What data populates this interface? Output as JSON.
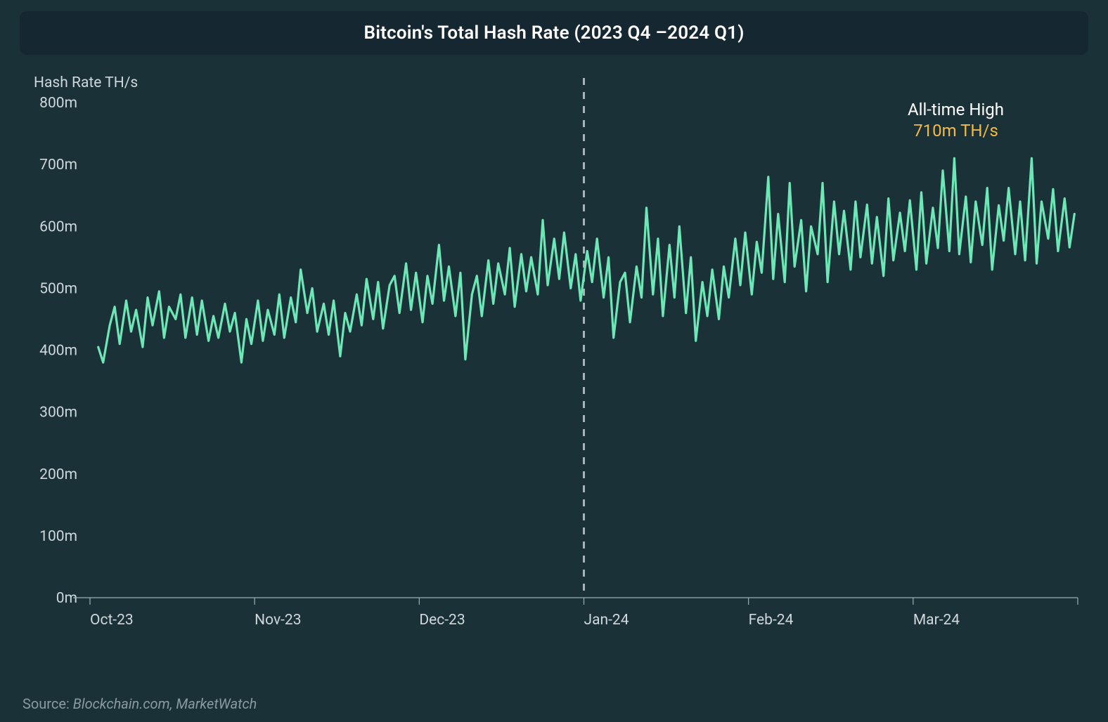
{
  "title": "Bitcoin's Total Hash Rate (2023 Q4 –2024 Q1)",
  "chart": {
    "type": "line",
    "ylabel": "Hash Rate TH/s",
    "ylim": [
      0,
      800
    ],
    "ytick_step": 100,
    "ytick_labels": [
      "0m",
      "100m",
      "200m",
      "300m",
      "400m",
      "500m",
      "600m",
      "700m",
      "800m"
    ],
    "xlim": [
      0,
      6
    ],
    "xticks": [
      0,
      1,
      2,
      3,
      4,
      5
    ],
    "xtick_labels": [
      "Oct-23",
      "Nov-23",
      "Dec-23",
      "Jan-24",
      "Feb-24",
      "Mar-24"
    ],
    "line_color": "#6ee7b7",
    "line_width": 3.2,
    "background_color": "#1a3138",
    "axis_color": "#9bb0b6",
    "dashed_line_x": 3,
    "dashed_line_color": "#a9b3ba",
    "annotation": {
      "line1": "All-time High",
      "line2": "710m TH/s",
      "line1_color": "#ffffff",
      "line2_color": "#f5b944",
      "fontsize": 24
    },
    "series": [
      [
        0.05,
        405
      ],
      [
        0.08,
        380
      ],
      [
        0.12,
        440
      ],
      [
        0.15,
        470
      ],
      [
        0.18,
        410
      ],
      [
        0.22,
        480
      ],
      [
        0.25,
        430
      ],
      [
        0.28,
        465
      ],
      [
        0.32,
        405
      ],
      [
        0.35,
        485
      ],
      [
        0.38,
        440
      ],
      [
        0.42,
        495
      ],
      [
        0.45,
        420
      ],
      [
        0.48,
        470
      ],
      [
        0.52,
        450
      ],
      [
        0.55,
        490
      ],
      [
        0.58,
        420
      ],
      [
        0.62,
        485
      ],
      [
        0.65,
        425
      ],
      [
        0.68,
        480
      ],
      [
        0.72,
        415
      ],
      [
        0.75,
        455
      ],
      [
        0.78,
        420
      ],
      [
        0.82,
        475
      ],
      [
        0.85,
        430
      ],
      [
        0.88,
        460
      ],
      [
        0.92,
        380
      ],
      [
        0.95,
        450
      ],
      [
        0.98,
        410
      ],
      [
        1.02,
        480
      ],
      [
        1.05,
        415
      ],
      [
        1.08,
        465
      ],
      [
        1.12,
        425
      ],
      [
        1.15,
        490
      ],
      [
        1.18,
        420
      ],
      [
        1.22,
        485
      ],
      [
        1.25,
        445
      ],
      [
        1.28,
        530
      ],
      [
        1.32,
        460
      ],
      [
        1.35,
        500
      ],
      [
        1.38,
        430
      ],
      [
        1.42,
        475
      ],
      [
        1.45,
        425
      ],
      [
        1.48,
        480
      ],
      [
        1.52,
        390
      ],
      [
        1.55,
        460
      ],
      [
        1.58,
        430
      ],
      [
        1.62,
        490
      ],
      [
        1.65,
        440
      ],
      [
        1.68,
        515
      ],
      [
        1.72,
        450
      ],
      [
        1.75,
        510
      ],
      [
        1.78,
        435
      ],
      [
        1.82,
        505
      ],
      [
        1.85,
        520
      ],
      [
        1.88,
        460
      ],
      [
        1.92,
        540
      ],
      [
        1.95,
        465
      ],
      [
        1.98,
        525
      ],
      [
        2.02,
        445
      ],
      [
        2.05,
        520
      ],
      [
        2.08,
        475
      ],
      [
        2.12,
        570
      ],
      [
        2.15,
        480
      ],
      [
        2.18,
        535
      ],
      [
        2.22,
        455
      ],
      [
        2.25,
        525
      ],
      [
        2.28,
        385
      ],
      [
        2.32,
        490
      ],
      [
        2.35,
        520
      ],
      [
        2.38,
        455
      ],
      [
        2.42,
        545
      ],
      [
        2.45,
        475
      ],
      [
        2.48,
        540
      ],
      [
        2.52,
        490
      ],
      [
        2.55,
        565
      ],
      [
        2.58,
        470
      ],
      [
        2.62,
        555
      ],
      [
        2.65,
        495
      ],
      [
        2.68,
        550
      ],
      [
        2.72,
        490
      ],
      [
        2.75,
        610
      ],
      [
        2.78,
        505
      ],
      [
        2.82,
        580
      ],
      [
        2.85,
        515
      ],
      [
        2.88,
        590
      ],
      [
        2.92,
        500
      ],
      [
        2.95,
        555
      ],
      [
        2.98,
        480
      ],
      [
        3.02,
        560
      ],
      [
        3.05,
        510
      ],
      [
        3.08,
        580
      ],
      [
        3.12,
        485
      ],
      [
        3.15,
        550
      ],
      [
        3.18,
        420
      ],
      [
        3.22,
        510
      ],
      [
        3.25,
        525
      ],
      [
        3.28,
        445
      ],
      [
        3.32,
        535
      ],
      [
        3.35,
        485
      ],
      [
        3.38,
        630
      ],
      [
        3.42,
        490
      ],
      [
        3.45,
        580
      ],
      [
        3.48,
        455
      ],
      [
        3.52,
        570
      ],
      [
        3.55,
        485
      ],
      [
        3.58,
        600
      ],
      [
        3.62,
        460
      ],
      [
        3.65,
        550
      ],
      [
        3.68,
        415
      ],
      [
        3.72,
        510
      ],
      [
        3.75,
        455
      ],
      [
        3.78,
        530
      ],
      [
        3.82,
        450
      ],
      [
        3.85,
        535
      ],
      [
        3.88,
        485
      ],
      [
        3.92,
        580
      ],
      [
        3.95,
        505
      ],
      [
        3.98,
        590
      ],
      [
        4.02,
        490
      ],
      [
        4.05,
        575
      ],
      [
        4.08,
        525
      ],
      [
        4.12,
        680
      ],
      [
        4.15,
        515
      ],
      [
        4.18,
        620
      ],
      [
        4.22,
        510
      ],
      [
        4.25,
        670
      ],
      [
        4.28,
        535
      ],
      [
        4.32,
        610
      ],
      [
        4.35,
        495
      ],
      [
        4.38,
        600
      ],
      [
        4.42,
        555
      ],
      [
        4.45,
        670
      ],
      [
        4.48,
        510
      ],
      [
        4.52,
        640
      ],
      [
        4.55,
        555
      ],
      [
        4.58,
        625
      ],
      [
        4.62,
        530
      ],
      [
        4.65,
        640
      ],
      [
        4.68,
        550
      ],
      [
        4.72,
        635
      ],
      [
        4.75,
        540
      ],
      [
        4.78,
        615
      ],
      [
        4.82,
        520
      ],
      [
        4.85,
        645
      ],
      [
        4.88,
        545
      ],
      [
        4.92,
        622
      ],
      [
        4.95,
        560
      ],
      [
        4.98,
        642
      ],
      [
        5.02,
        530
      ],
      [
        5.05,
        655
      ],
      [
        5.08,
        540
      ],
      [
        5.12,
        630
      ],
      [
        5.15,
        565
      ],
      [
        5.18,
        690
      ],
      [
        5.22,
        560
      ],
      [
        5.25,
        710
      ],
      [
        5.28,
        555
      ],
      [
        5.32,
        648
      ],
      [
        5.35,
        542
      ],
      [
        5.38,
        640
      ],
      [
        5.42,
        570
      ],
      [
        5.45,
        662
      ],
      [
        5.48,
        530
      ],
      [
        5.52,
        634
      ],
      [
        5.55,
        577
      ],
      [
        5.58,
        662
      ],
      [
        5.62,
        555
      ],
      [
        5.65,
        640
      ],
      [
        5.68,
        545
      ],
      [
        5.72,
        710
      ],
      [
        5.75,
        540
      ],
      [
        5.78,
        640
      ],
      [
        5.82,
        580
      ],
      [
        5.85,
        660
      ],
      [
        5.88,
        560
      ],
      [
        5.92,
        645
      ],
      [
        5.95,
        566
      ],
      [
        5.98,
        620
      ]
    ]
  },
  "source_prefix": "Source: ",
  "source_italic": "Blockchain.com, MarketWatch"
}
